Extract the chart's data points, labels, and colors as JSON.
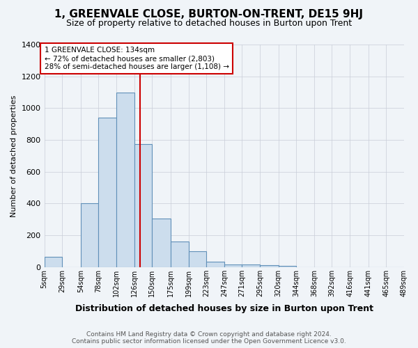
{
  "title": "1, GREENVALE CLOSE, BURTON-ON-TRENT, DE15 9HJ",
  "subtitle": "Size of property relative to detached houses in Burton upon Trent",
  "xlabel": "Distribution of detached houses by size in Burton upon Trent",
  "ylabel": "Number of detached properties",
  "footer_line1": "Contains HM Land Registry data © Crown copyright and database right 2024.",
  "footer_line2": "Contains public sector information licensed under the Open Government Licence v3.0.",
  "bin_labels": [
    "5sqm",
    "29sqm",
    "54sqm",
    "78sqm",
    "102sqm",
    "126sqm",
    "150sqm",
    "175sqm",
    "199sqm",
    "223sqm",
    "247sqm",
    "271sqm",
    "295sqm",
    "320sqm",
    "344sqm",
    "368sqm",
    "392sqm",
    "416sqm",
    "441sqm",
    "465sqm",
    "489sqm"
  ],
  "bin_edges": [
    5,
    29,
    54,
    78,
    102,
    126,
    150,
    175,
    199,
    223,
    247,
    271,
    295,
    320,
    344,
    368,
    392,
    416,
    441,
    465,
    489
  ],
  "bar_values": [
    65,
    0,
    400,
    940,
    1100,
    775,
    305,
    160,
    100,
    35,
    15,
    15,
    10,
    8,
    0,
    0,
    0,
    0,
    0,
    0
  ],
  "bar_face_color": "#ccdded",
  "bar_edge_color": "#6090b8",
  "vline_x": 134,
  "vline_color": "#cc0000",
  "annotation_line1": "1 GREENVALE CLOSE: 134sqm",
  "annotation_line2": "← 72% of detached houses are smaller (2,803)",
  "annotation_line3": "28% of semi-detached houses are larger (1,108) →",
  "ylim": [
    0,
    1400
  ],
  "yticks": [
    0,
    200,
    400,
    600,
    800,
    1000,
    1200,
    1400
  ],
  "background_color": "#f0f4f8",
  "grid_color": "#c8cdd8",
  "property_size_sqm": 134
}
